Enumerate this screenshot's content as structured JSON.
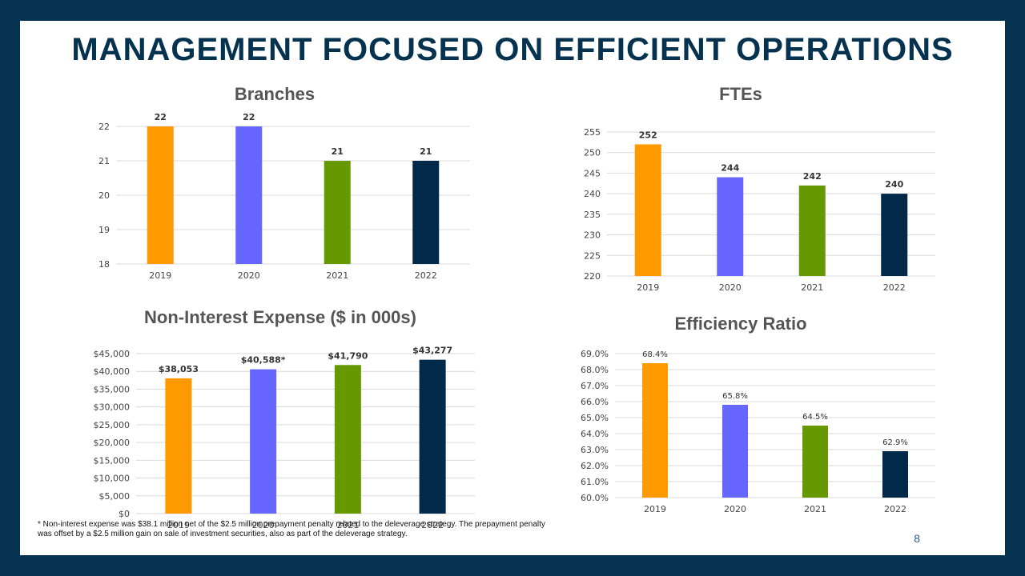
{
  "slide": {
    "title": "MANAGEMENT FOCUSED ON EFFICIENT OPERATIONS",
    "footnote": "* Non-interest expense was $38.1 million net of the $2.5 million prepayment penalty related to the deleverage strategy. The prepayment penalty was offset by a $2.5 million gain on sale of investment securities, also as part of the deleverage strategy.",
    "page_number": "8"
  },
  "colors": {
    "background": "#05324f",
    "slide": "#ffffff",
    "title": "#05324f",
    "chart_title": "#555555",
    "bar_2019": "#ff9900",
    "bar_2020": "#6666ff",
    "bar_2021": "#669900",
    "bar_2022": "#00294a",
    "gridline": "#d9d9d9"
  },
  "chart_data": [
    {
      "id": "branches",
      "type": "bar",
      "title": "Branches",
      "categories": [
        "2019",
        "2020",
        "2021",
        "2022"
      ],
      "values": [
        22,
        22,
        21,
        21
      ],
      "data_labels": [
        "22",
        "22",
        "21",
        "21"
      ],
      "ylim": [
        18,
        22
      ],
      "yticks": [
        18,
        19,
        20,
        21,
        22
      ],
      "ytick_labels": [
        "18",
        "19",
        "20",
        "21",
        "22"
      ],
      "grid": true,
      "legend": "none"
    },
    {
      "id": "ftes",
      "type": "bar",
      "title": "FTEs",
      "categories": [
        "2019",
        "2020",
        "2021",
        "2022"
      ],
      "values": [
        252,
        244,
        242,
        240
      ],
      "data_labels": [
        "252",
        "244",
        "242",
        "240"
      ],
      "ylim": [
        220,
        255
      ],
      "yticks": [
        220,
        225,
        230,
        235,
        240,
        245,
        250,
        255
      ],
      "ytick_labels": [
        "220",
        "225",
        "230",
        "235",
        "240",
        "245",
        "250",
        "255"
      ],
      "grid": true,
      "legend": "none"
    },
    {
      "id": "non-interest-expense",
      "type": "bar",
      "title": "Non-Interest Expense ($ in 000s)",
      "categories": [
        "2019",
        "2020",
        "2021",
        "2022"
      ],
      "values": [
        38053,
        40588,
        41790,
        43277
      ],
      "data_labels": [
        "$38,053",
        "$40,588*",
        "$41,790",
        "$43,277"
      ],
      "ylim": [
        0,
        45000
      ],
      "yticks": [
        0,
        5000,
        10000,
        15000,
        20000,
        25000,
        30000,
        35000,
        40000,
        45000
      ],
      "ytick_labels": [
        "$0",
        "$5,000",
        "$10,000",
        "$15,000",
        "$20,000",
        "$25,000",
        "$30,000",
        "$35,000",
        "$40,000",
        "$45,000"
      ],
      "grid": true,
      "legend": "none"
    },
    {
      "id": "efficiency-ratio",
      "type": "bar",
      "title": "Efficiency Ratio",
      "categories": [
        "2019",
        "2020",
        "2021",
        "2022"
      ],
      "values": [
        68.4,
        65.8,
        64.5,
        62.9
      ],
      "data_labels": [
        "68.4%",
        "65.8%",
        "64.5%",
        "62.9%"
      ],
      "ylim": [
        60,
        69
      ],
      "yticks": [
        60,
        61,
        62,
        63,
        64,
        65,
        66,
        67,
        68,
        69
      ],
      "ytick_labels": [
        "60.0%",
        "61.0%",
        "62.0%",
        "63.0%",
        "64.0%",
        "65.0%",
        "66.0%",
        "67.0%",
        "68.0%",
        "69.0%"
      ],
      "grid": true,
      "legend": "none"
    }
  ]
}
